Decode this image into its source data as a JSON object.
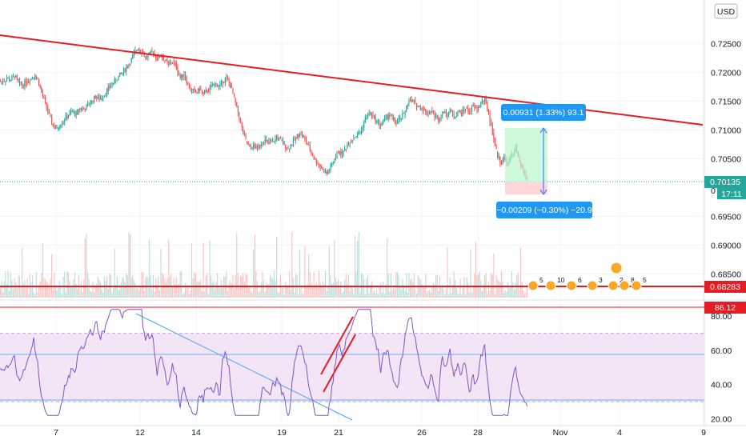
{
  "currency_button": "USD",
  "price_axis": {
    "ticks": [
      "0.72500",
      "0.72000",
      "0.71500",
      "0.71000",
      "0.70500",
      "0.69500",
      "0.69000",
      "0.68500"
    ],
    "tick_values": [
      0.725,
      0.72,
      0.715,
      0.71,
      0.705,
      0.695,
      0.69,
      0.685
    ],
    "clipped_tick": "0",
    "current_price": "0.70135",
    "countdown": "17:11",
    "red_level": "0.68283",
    "range": [
      0.6805,
      0.7326
    ]
  },
  "rsi_axis": {
    "ticks": [
      "80.00",
      "60.00",
      "40.00",
      "20.00"
    ],
    "tick_values": [
      80,
      60,
      40,
      20
    ],
    "marker": "86.12",
    "range": [
      16,
      89
    ]
  },
  "date_axis": {
    "labels": [
      "7",
      "12",
      "14",
      "19",
      "21",
      "26",
      "28",
      "Nov",
      "4",
      "9"
    ]
  },
  "measure": {
    "up_label": "0.00931 (1.33%) 93.1",
    "down_label": "−0.00209 (−0.30%) −20.9"
  },
  "events": {
    "counts": [
      "5",
      "10",
      "6",
      "3",
      "2",
      "8",
      "5"
    ]
  },
  "colors": {
    "up": "#26a69a",
    "down": "#ef5350",
    "trendline": "#e51c23",
    "rsi_line": "#7e57c2",
    "rsi_band": "#f3e5f5",
    "rsi_trendline": "#42a5f5",
    "measure_label": "#2962ff",
    "current_price": "#26a69a"
  },
  "chart_data": {
    "type": "candlestick",
    "x_span": [
      "6",
      "9"
    ],
    "trendline_price": [
      0.7314,
      0.7115
    ],
    "rsi_levels": [
      70,
      30
    ],
    "closes": [
      0.7185,
      0.719,
      0.7187,
      0.7194,
      0.7182,
      0.7178,
      0.7184,
      0.7188,
      0.7195,
      0.7189,
      0.7165,
      0.7148,
      0.7125,
      0.7108,
      0.7102,
      0.7111,
      0.7119,
      0.7126,
      0.7132,
      0.7128,
      0.7138,
      0.7136,
      0.7143,
      0.715,
      0.7158,
      0.7153,
      0.716,
      0.7168,
      0.7178,
      0.7185,
      0.7193,
      0.72,
      0.7209,
      0.7218,
      0.7232,
      0.7243,
      0.7237,
      0.7226,
      0.7231,
      0.7236,
      0.7224,
      0.723,
      0.7221,
      0.7214,
      0.7219,
      0.7209,
      0.7191,
      0.7198,
      0.7178,
      0.7169,
      0.7165,
      0.7171,
      0.7162,
      0.7168,
      0.7175,
      0.7181,
      0.7176,
      0.7184,
      0.719,
      0.7177,
      0.7155,
      0.713,
      0.7102,
      0.7081,
      0.7068,
      0.7073,
      0.7069,
      0.7078,
      0.7083,
      0.7076,
      0.708,
      0.7088,
      0.7082,
      0.7075,
      0.7068,
      0.7077,
      0.7086,
      0.7096,
      0.7087,
      0.7075,
      0.7061,
      0.7048,
      0.704,
      0.7032,
      0.7024,
      0.7036,
      0.7048,
      0.7063,
      0.7058,
      0.707,
      0.7081,
      0.7087,
      0.7093,
      0.7101,
      0.712,
      0.713,
      0.7124,
      0.7115,
      0.7108,
      0.7119,
      0.7127,
      0.7121,
      0.7111,
      0.712,
      0.7127,
      0.7147,
      0.7152,
      0.7146,
      0.714,
      0.7138,
      0.7128,
      0.7134,
      0.7125,
      0.7118,
      0.7132,
      0.7126,
      0.7135,
      0.7122,
      0.7132,
      0.7129,
      0.7138,
      0.7131,
      0.7142,
      0.7135,
      0.7148,
      0.7154,
      0.7128,
      0.7096,
      0.7063,
      0.7045,
      0.7052,
      0.7041,
      0.7058,
      0.7069,
      0.7045,
      0.7028,
      0.7016
    ]
  }
}
